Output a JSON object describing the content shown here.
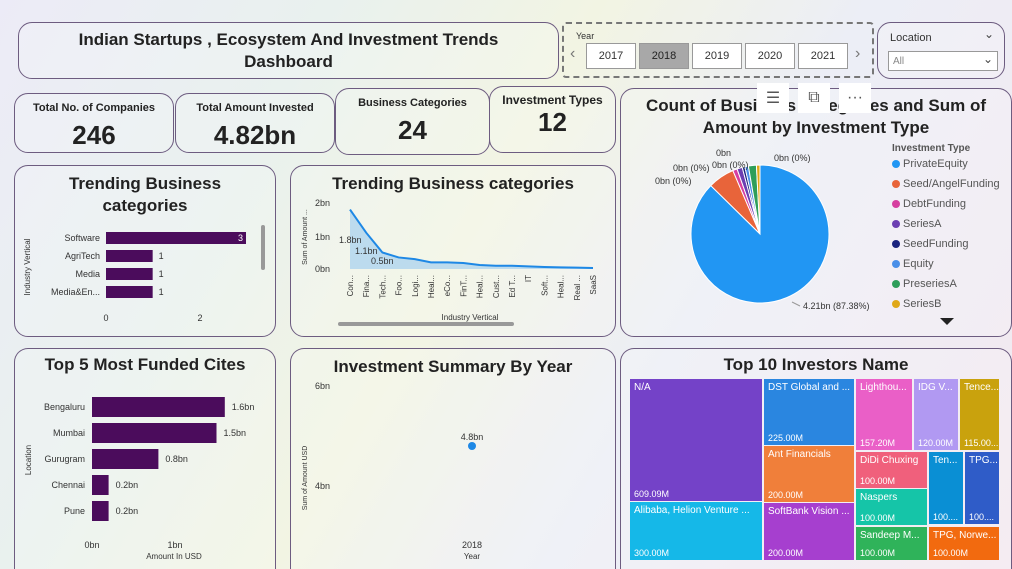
{
  "header": {
    "title": "Indian Startups , Ecosystem And Investment Trends Dashboard"
  },
  "year_slicer": {
    "label": "Year",
    "years": [
      "2017",
      "2018",
      "2019",
      "2020",
      "2021"
    ],
    "selected": "2018"
  },
  "location_slicer": {
    "label": "Location",
    "value": "All"
  },
  "kpis": [
    {
      "label": "Total No. of Companies",
      "value": "246"
    },
    {
      "label": "Total Amount Invested",
      "value": "4.82bn"
    },
    {
      "label": "Business Categories",
      "value": "24"
    },
    {
      "label": "Investment Types",
      "value": "12"
    }
  ],
  "trending_bar": {
    "title": "Trending Business categories",
    "ylabel": "Industry Vertical",
    "xticks": [
      "0",
      "2"
    ]
  },
  "trending_line": {
    "title": "Trending Business categories",
    "xlabel": "Industry Vertical",
    "ylabel": "Sum of Amount ...",
    "yticks": [
      "2bn",
      "1bn",
      "0bn"
    ],
    "point_labels": [
      "1.8bn",
      "1.1bn",
      "0.5bn"
    ]
  },
  "pie": {
    "title": "Count of Business Categories and Sum of Amount by Investment Type",
    "legend_title": "Investment Type",
    "labels": [
      "0bn",
      "0bn (0%)",
      "0bn (0%)",
      "0bn (0%)",
      "0bn (0%)",
      "4.21bn (87.38%)"
    ]
  },
  "cities": {
    "title": "Top 5 Most Funded Cites",
    "ylabel": "Location",
    "xlabel": "Amount In USD",
    "xticks": [
      "0bn",
      "1bn"
    ]
  },
  "summary": {
    "title": "Investment Summary By Year",
    "ylabel": "Sum of Amount USD",
    "xlabel": "Year",
    "yticks": [
      "6bn",
      "4bn"
    ],
    "point_label": "4.8bn",
    "x_label": "2018"
  },
  "investors": {
    "title": "Top 10 Investors Name"
  },
  "colors": {
    "bar": "#4b0c5c",
    "line": "#1e88e5"
  },
  "chart_data": [
    {
      "type": "bar",
      "categories": [
        "Software",
        "AgriTech",
        "Media",
        "Media&En..."
      ],
      "values": [
        3,
        1,
        1,
        1
      ],
      "xlim": [
        0,
        3.2
      ]
    },
    {
      "type": "area",
      "categories": [
        "Con...",
        "Fina...",
        "Tech...",
        "Foo...",
        "Logi...",
        "Heal...",
        "eCo...",
        "FinT...",
        "Heal...",
        "Cust...",
        "Ed T...",
        "IT",
        "Soft...",
        "Heal...",
        "Real ...",
        "SaaS"
      ],
      "values": [
        1.8,
        1.1,
        0.5,
        0.35,
        0.3,
        0.2,
        0.2,
        0.18,
        0.12,
        0.1,
        0.1,
        0.08,
        0.06,
        0.05,
        0.04,
        0.03
      ],
      "ylim": [
        0,
        2
      ]
    },
    {
      "type": "pie",
      "series": [
        {
          "name": "PrivateEquity",
          "value": 4.21,
          "color": "#2196f3"
        },
        {
          "name": "Seed/AngelFunding",
          "value": 0.3,
          "color": "#e8643a"
        },
        {
          "name": "DebtFunding",
          "value": 0.05,
          "color": "#d63fa0"
        },
        {
          "name": "SeriesA",
          "value": 0.06,
          "color": "#6b3fb2"
        },
        {
          "name": "SeedFunding",
          "value": 0.03,
          "color": "#1a237e"
        },
        {
          "name": "Equity",
          "value": 0.04,
          "color": "#4a8fe8"
        },
        {
          "name": "PreseriesA",
          "value": 0.09,
          "color": "#2e9e5a"
        },
        {
          "name": "SeriesB",
          "value": 0.04,
          "color": "#e0a818"
        }
      ]
    },
    {
      "type": "bar",
      "categories": [
        "Bengaluru",
        "Mumbai",
        "Gurugram",
        "Chennai",
        "Pune"
      ],
      "values": [
        1.6,
        1.5,
        0.8,
        0.2,
        0.2
      ],
      "labels": [
        "1.6bn",
        "1.5bn",
        "0.8bn",
        "0.2bn",
        "0.2bn"
      ],
      "xlim": [
        0,
        1.85
      ]
    },
    {
      "type": "scatter",
      "x": [
        "2018"
      ],
      "y": [
        4.8
      ],
      "ylim": [
        3.5,
        6
      ]
    },
    {
      "type": "treemap",
      "items": [
        {
          "name": "N/A",
          "value": "609.09M",
          "color": "#7442c8"
        },
        {
          "name": "Alibaba, Helion Venture ...",
          "value": "300.00M",
          "color": "#15b8e8"
        },
        {
          "name": "DST Global and ...",
          "value": "225.00M",
          "color": "#2a86e0"
        },
        {
          "name": "Ant Financials",
          "value": "200.00M",
          "color": "#f07f3a"
        },
        {
          "name": "SoftBank Vision ...",
          "value": "200.00M",
          "color": "#a63fcf"
        },
        {
          "name": "Lighthou...",
          "value": "157.20M",
          "color": "#ea5fc7"
        },
        {
          "name": "IDG V...",
          "value": "120.00M",
          "color": "#b199f2"
        },
        {
          "name": "Tence...",
          "value": "115.00...",
          "color": "#c9a20d"
        },
        {
          "name": "DiDi Chuxing",
          "value": "100.00M",
          "color": "#f0607c"
        },
        {
          "name": "Ten...",
          "value": "100....",
          "color": "#0a8fd4"
        },
        {
          "name": "TPG...",
          "value": "100....",
          "color": "#2f5cc8"
        },
        {
          "name": "Naspers",
          "value": "100.00M",
          "color": "#15c5a8"
        },
        {
          "name": "Sandeep M...",
          "value": "100.00M",
          "color": "#2fb35a"
        },
        {
          "name": "TPG, Norwe...",
          "value": "100.00M",
          "color": "#f26a0f"
        }
      ]
    }
  ]
}
